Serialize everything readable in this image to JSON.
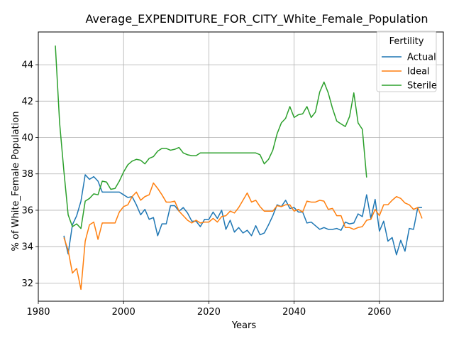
{
  "chart_data": {
    "type": "line",
    "title": "Average_EXPENDITURE_FOR_CITY_White_Female_Population",
    "xlabel": "Years",
    "ylabel": "% of White_Female Population",
    "xlim": [
      1980,
      2075
    ],
    "ylim": [
      31,
      45.8
    ],
    "xticks": [
      1980,
      2000,
      2020,
      2040,
      2060
    ],
    "yticks": [
      32,
      34,
      36,
      38,
      40,
      42,
      44
    ],
    "grid": true,
    "legend": {
      "title": "Fertility",
      "position": "top-right"
    },
    "series": [
      {
        "name": "Actual",
        "color": "#1f77b4",
        "x": [
          1986,
          1987,
          1988,
          1989,
          1990,
          1991,
          1992,
          1993,
          1994,
          1995,
          1996,
          1997,
          1998,
          1999,
          2000,
          2001,
          2002,
          2003,
          2004,
          2005,
          2006,
          2007,
          2008,
          2009,
          2010,
          2011,
          2012,
          2013,
          2014,
          2015,
          2016,
          2017,
          2018,
          2019,
          2020,
          2021,
          2022,
          2023,
          2024,
          2025,
          2026,
          2027,
          2028,
          2029,
          2030,
          2031,
          2032,
          2033,
          2034,
          2035,
          2036,
          2037,
          2038,
          2039,
          2040,
          2041,
          2042,
          2043,
          2044,
          2045,
          2046,
          2047,
          2048,
          2049,
          2050,
          2051,
          2052,
          2053,
          2054,
          2055,
          2056,
          2057,
          2058,
          2059,
          2060,
          2061,
          2062,
          2063,
          2064,
          2065,
          2066,
          2067,
          2068,
          2069,
          2070
        ],
        "values": [
          34.6,
          33.6,
          35.2,
          35.7,
          36.5,
          37.95,
          37.7,
          37.85,
          37.6,
          37.0,
          37.0,
          37.0,
          37.0,
          37.0,
          36.85,
          36.7,
          36.75,
          36.3,
          35.75,
          36.05,
          35.5,
          35.6,
          34.6,
          35.25,
          35.25,
          36.25,
          36.25,
          35.95,
          36.15,
          35.85,
          35.4,
          35.4,
          35.1,
          35.5,
          35.5,
          35.9,
          35.55,
          36.0,
          34.95,
          35.45,
          34.8,
          35.05,
          34.75,
          34.9,
          34.6,
          35.15,
          34.65,
          34.75,
          35.2,
          35.7,
          36.3,
          36.2,
          36.55,
          36.1,
          36.15,
          35.9,
          35.9,
          35.3,
          35.35,
          35.15,
          34.95,
          35.05,
          34.95,
          34.95,
          35.0,
          34.9,
          35.35,
          35.25,
          35.3,
          35.8,
          35.65,
          36.85,
          35.55,
          36.6,
          34.85,
          35.4,
          34.3,
          34.5,
          33.55,
          34.35,
          33.75,
          35.0,
          34.95,
          36.15,
          36.15
        ]
      },
      {
        "name": "Ideal",
        "color": "#ff7f0e",
        "x": [
          1986,
          1987,
          1988,
          1989,
          1990,
          1991,
          1992,
          1993,
          1994,
          1995,
          1996,
          1997,
          1998,
          1999,
          2000,
          2001,
          2002,
          2003,
          2004,
          2005,
          2006,
          2007,
          2008,
          2009,
          2010,
          2011,
          2012,
          2013,
          2014,
          2015,
          2016,
          2017,
          2018,
          2019,
          2020,
          2021,
          2022,
          2023,
          2024,
          2025,
          2026,
          2027,
          2028,
          2029,
          2030,
          2031,
          2032,
          2033,
          2034,
          2035,
          2036,
          2037,
          2038,
          2039,
          2040,
          2041,
          2042,
          2043,
          2044,
          2045,
          2046,
          2047,
          2048,
          2049,
          2050,
          2051,
          2052,
          2053,
          2054,
          2055,
          2056,
          2057,
          2058,
          2059,
          2060,
          2061,
          2062,
          2063,
          2064,
          2065,
          2066,
          2067,
          2068,
          2069,
          2070
        ],
        "values": [
          34.5,
          33.8,
          32.55,
          32.8,
          31.65,
          34.3,
          35.2,
          35.35,
          34.4,
          35.3,
          35.3,
          35.3,
          35.3,
          35.9,
          36.2,
          36.3,
          36.75,
          37.0,
          36.55,
          36.75,
          36.85,
          37.5,
          37.2,
          36.85,
          36.45,
          36.45,
          36.5,
          35.95,
          35.7,
          35.45,
          35.3,
          35.45,
          35.3,
          35.35,
          35.35,
          35.55,
          35.35,
          35.65,
          35.7,
          35.95,
          35.85,
          36.15,
          36.55,
          36.95,
          36.45,
          36.55,
          36.2,
          35.95,
          35.95,
          35.95,
          36.25,
          36.2,
          36.3,
          36.3,
          35.95,
          36.05,
          35.9,
          36.5,
          36.45,
          36.45,
          36.55,
          36.5,
          36.05,
          36.1,
          35.7,
          35.7,
          35.05,
          35.05,
          34.95,
          35.05,
          35.1,
          35.45,
          35.5,
          36.05,
          35.7,
          36.3,
          36.3,
          36.55,
          36.75,
          36.65,
          36.4,
          36.3,
          36.05,
          36.15,
          35.55
        ]
      },
      {
        "name": "Sterile",
        "color": "#2ca02c",
        "x": [
          1984,
          1985,
          1986,
          1987,
          1988,
          1989,
          1990,
          1991,
          1992,
          1993,
          1994,
          1995,
          1996,
          1997,
          1998,
          1999,
          2000,
          2001,
          2002,
          2003,
          2004,
          2005,
          2006,
          2007,
          2008,
          2009,
          2010,
          2011,
          2012,
          2013,
          2014,
          2015,
          2016,
          2017,
          2018,
          2019,
          2020,
          2021,
          2022,
          2023,
          2024,
          2025,
          2026,
          2027,
          2028,
          2029,
          2030,
          2031,
          2032,
          2033,
          2034,
          2035,
          2036,
          2037,
          2038,
          2039,
          2040,
          2041,
          2042,
          2043,
          2044,
          2045,
          2046,
          2047,
          2048,
          2049,
          2050,
          2051,
          2052,
          2053,
          2054,
          2055,
          2056,
          2057
        ],
        "values": [
          45.05,
          40.8,
          38.15,
          35.75,
          35.1,
          35.25,
          35.0,
          36.5,
          36.65,
          36.9,
          36.85,
          37.6,
          37.55,
          37.15,
          37.2,
          37.6,
          38.1,
          38.5,
          38.7,
          38.8,
          38.75,
          38.55,
          38.85,
          38.95,
          39.25,
          39.4,
          39.4,
          39.3,
          39.35,
          39.45,
          39.15,
          39.05,
          39.0,
          39.0,
          39.15,
          39.15,
          39.15,
          39.15,
          39.15,
          39.15,
          39.15,
          39.15,
          39.15,
          39.15,
          39.15,
          39.15,
          39.15,
          39.15,
          39.05,
          38.55,
          38.8,
          39.3,
          40.2,
          40.8,
          41.05,
          41.7,
          41.1,
          41.25,
          41.3,
          41.7,
          41.1,
          41.4,
          42.5,
          43.05,
          42.45,
          41.6,
          40.9,
          40.75,
          40.6,
          41.15,
          42.45,
          40.8,
          40.45,
          37.8
        ]
      }
    ]
  }
}
